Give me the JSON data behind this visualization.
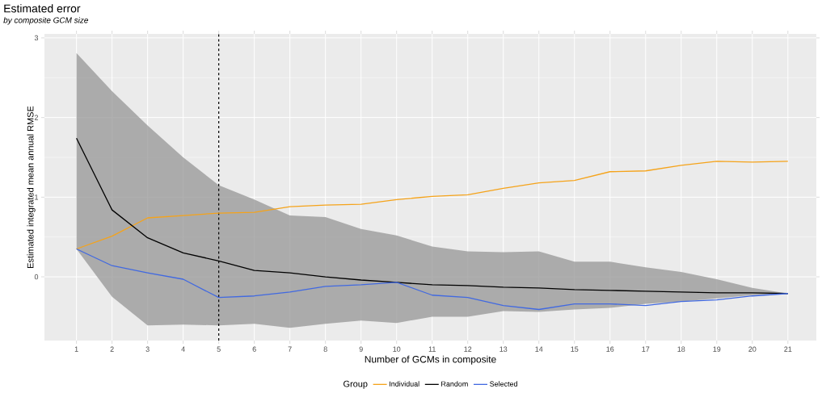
{
  "chart_data": {
    "type": "line",
    "title": "Estimated error",
    "subtitle": "by composite GCM size",
    "xlabel": "Number of GCMs in composite",
    "ylabel": "Estimated integrated mean annual RMSE",
    "legend_title": "Group",
    "x": [
      1,
      2,
      3,
      4,
      5,
      6,
      7,
      8,
      9,
      10,
      11,
      12,
      13,
      14,
      15,
      16,
      17,
      18,
      19,
      20,
      21
    ],
    "series": [
      {
        "name": "Individual",
        "color": "#f5a31a",
        "values": [
          0.35,
          0.51,
          0.74,
          0.77,
          0.8,
          0.81,
          0.88,
          0.9,
          0.91,
          0.97,
          1.01,
          1.03,
          1.11,
          1.18,
          1.21,
          1.32,
          1.33,
          1.4,
          1.45,
          1.44,
          1.45
        ]
      },
      {
        "name": "Random",
        "color": "#000000",
        "values": [
          1.74,
          0.84,
          0.49,
          0.3,
          0.2,
          0.08,
          0.05,
          0.0,
          -0.04,
          -0.07,
          -0.1,
          -0.11,
          -0.13,
          -0.14,
          -0.16,
          -0.17,
          -0.18,
          -0.19,
          -0.2,
          -0.2,
          -0.21
        ],
        "lower": [
          0.35,
          -0.25,
          -0.61,
          -0.6,
          -0.61,
          -0.59,
          -0.64,
          -0.59,
          -0.55,
          -0.58,
          -0.5,
          -0.5,
          -0.43,
          -0.44,
          -0.41,
          -0.39,
          -0.34,
          -0.31,
          -0.27,
          -0.23,
          -0.21
        ],
        "upper": [
          2.81,
          2.33,
          1.9,
          1.5,
          1.15,
          0.97,
          0.77,
          0.75,
          0.6,
          0.52,
          0.38,
          0.32,
          0.31,
          0.32,
          0.19,
          0.19,
          0.12,
          0.06,
          -0.03,
          -0.14,
          -0.21
        ]
      },
      {
        "name": "Selected",
        "color": "#4169e1",
        "values": [
          0.35,
          0.14,
          0.05,
          -0.03,
          -0.26,
          -0.24,
          -0.19,
          -0.12,
          -0.1,
          -0.07,
          -0.23,
          -0.26,
          -0.36,
          -0.41,
          -0.34,
          -0.34,
          -0.36,
          -0.31,
          -0.29,
          -0.24,
          -0.21
        ]
      }
    ],
    "xlim": [
      0.1,
      21.8
    ],
    "ylim": [
      -0.8,
      3.05
    ],
    "xticks": [
      1,
      2,
      3,
      4,
      5,
      6,
      7,
      8,
      9,
      10,
      11,
      12,
      13,
      14,
      15,
      16,
      17,
      18,
      19,
      20,
      21
    ],
    "yticks": [
      0,
      1,
      2,
      3
    ],
    "ref_lines": [
      {
        "axis": "x",
        "value": 5,
        "color": "#000000",
        "line_style": "dashed"
      }
    ],
    "grid": true,
    "legend": "bottom",
    "marker": "none",
    "line_style": "solid"
  }
}
